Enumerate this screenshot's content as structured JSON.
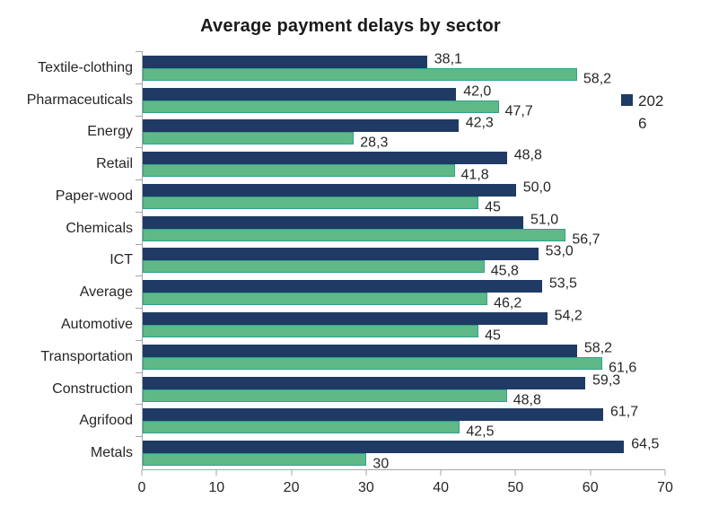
{
  "chart_data": {
    "type": "bar",
    "orientation": "horizontal",
    "title": "Average payment delays by sector",
    "xlabel": "",
    "ylabel": "",
    "grid": false,
    "xlim": [
      0,
      70
    ],
    "x_ticks": [
      "0",
      "10",
      "20",
      "30",
      "40",
      "50",
      "60",
      "70"
    ],
    "categories": [
      "Textile-clothing",
      "Pharmaceuticals",
      "Energy",
      "Retail",
      "Paper-wood",
      "Chemicals",
      "ICT",
      "Average",
      "Automotive",
      "Transportation",
      "Construction",
      "Agrifood",
      "Metals"
    ],
    "series": [
      {
        "name": "2026",
        "color": "#1f3a64",
        "values": [
          38.1,
          42.0,
          42.3,
          48.8,
          50.0,
          51.0,
          53.0,
          53.5,
          54.2,
          58.2,
          59.3,
          61.7,
          64.5
        ],
        "labels": [
          "38,1",
          "42,0",
          "42,3",
          "48,8",
          "50,0",
          "51,0",
          "53,0",
          "53,5",
          "54,2",
          "58,2",
          "59,3",
          "61,7",
          "64,5"
        ]
      },
      {
        "name": "",
        "color": "#5fb987",
        "border_color": "#32a08c",
        "values": [
          58.2,
          47.7,
          28.3,
          41.8,
          45,
          56.7,
          45.8,
          46.2,
          45,
          61.6,
          48.8,
          42.5,
          30
        ],
        "labels": [
          "58,2",
          "47,7",
          "28,3",
          "41,8",
          "45",
          "56,7",
          "45,8",
          "46,2",
          "45",
          "61,6",
          "48,8",
          "42,5",
          "30"
        ]
      }
    ],
    "legend": {
      "position": "right",
      "entries": [
        {
          "label": "2026",
          "color": "#1f3a64"
        }
      ]
    },
    "axis_color": "#a6a6a6"
  }
}
